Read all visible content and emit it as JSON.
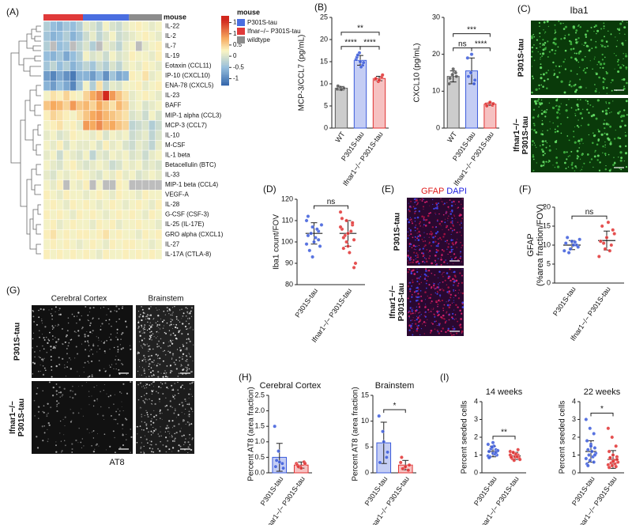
{
  "chart_data": [
    {
      "type": "heatmap",
      "panel": "(A)",
      "title": "mouse",
      "rows": [
        "IL-22",
        "IL-2",
        "IL-7",
        "IL-19",
        "Eotaxin (CCL11)",
        "IP-10 (CXCL10)",
        "ENA-78 (CXCL5)",
        "IL-23",
        "BAFF",
        "MIP-1 alpha (CCL3)",
        "MCP-3 (CCL7)",
        "IL-10",
        "M-CSF",
        "IL-1 beta",
        "Betacellulin (BTC)",
        "IL-33",
        "MIP-1 beta (CCL4)",
        "VEGF-A",
        "IL-28",
        "G-CSF (CSF-3)",
        "IL-25 (IL-17E)",
        "GRO alpha (CXCL1)",
        "IL-27",
        "IL-17A (CTLA-8)"
      ],
      "column_groups": [
        {
          "series": 1,
          "count": 6
        },
        {
          "series": 0,
          "count": 7
        },
        {
          "series": 2,
          "count": 5
        }
      ],
      "legend_title": "mouse",
      "legend": [
        {
          "name": "P301S-tau",
          "color": "#4a6ee0"
        },
        {
          "name": "Ifnar−/− P301S-tau",
          "color": "#e03a3a"
        },
        {
          "name": "wildtype",
          "color": "#8c8c8c"
        }
      ],
      "zlim": [
        -1.3,
        1.8
      ],
      "zticks": [
        1.5,
        1,
        0.5,
        0,
        -0.5,
        -1
      ],
      "values": [
        [
          -0.3,
          -0.5,
          -0.6,
          -0.4,
          -0.5,
          -0.3,
          0.1,
          0,
          -0.2,
          0.2,
          0,
          -0.1,
          0.1,
          0.2,
          0.3,
          0.2,
          0.1,
          0.2
        ],
        [
          -0.4,
          -0.6,
          -0.5,
          -0.3,
          -0.6,
          -0.4,
          -0.1,
          0.1,
          -0.2,
          0,
          0.2,
          -0.1,
          0,
          0.1,
          0.2,
          0.3,
          0.2,
          0.1
        ],
        [
          -0.3,
          null,
          -0.5,
          -0.4,
          null,
          -0.2,
          0,
          -0.3,
          null,
          0.1,
          0,
          -0.2,
          0.1,
          0.2,
          null,
          0.1,
          0.2,
          0.3
        ],
        [
          -0.5,
          -0.6,
          -0.4,
          -0.7,
          -0.5,
          -0.3,
          0.2,
          0,
          0.1,
          -0.1,
          0.2,
          0,
          0.1,
          0.3,
          0.2,
          0.2,
          0.1,
          0.3
        ],
        [
          -0.4,
          -0.2,
          -0.5,
          -0.3,
          -0.6,
          -0.4,
          -0.2,
          -0.4,
          -0.1,
          -0.3,
          0,
          -0.2,
          0.1,
          0.2,
          0.1,
          0.3,
          0.2,
          0.1
        ],
        [
          -0.8,
          -1.0,
          -0.7,
          -0.9,
          -1.1,
          -0.6,
          -0.6,
          -0.8,
          -0.5,
          -0.9,
          -0.4,
          -0.7,
          -0.6,
          0.3,
          0.2,
          0.4,
          0.1,
          0.2
        ],
        [
          -0.6,
          -0.8,
          -0.5,
          -0.7,
          -1.0,
          -0.4,
          0.2,
          -0.3,
          0.4,
          -0.2,
          0.1,
          0,
          0.2,
          0.2,
          0.3,
          0.1,
          0.2,
          0.3
        ],
        [
          0.2,
          0.4,
          0.3,
          0.5,
          0.3,
          0.2,
          0.5,
          0.8,
          1.0,
          1.6,
          0.9,
          0.6,
          0.4,
          0.1,
          0.2,
          0.3,
          0.2,
          0.1
        ],
        [
          0.6,
          0.8,
          0.7,
          0.5,
          0.9,
          0.6,
          0.7,
          0.5,
          0.8,
          0.6,
          0.4,
          0.7,
          0.5,
          0.1,
          0.2,
          0,
          0.1,
          0.2
        ],
        [
          0.3,
          0.5,
          0.4,
          0.3,
          0.2,
          0.4,
          0.6,
          0.8,
          0.9,
          0.7,
          0.6,
          0.5,
          0.4,
          0,
          0.1,
          -0.1,
          0.2,
          0
        ],
        [
          0.2,
          0.3,
          0.4,
          0.2,
          0.3,
          0.1,
          0.9,
          0.8,
          1.0,
          0.7,
          0.8,
          0.6,
          0.5,
          -0.2,
          -0.1,
          0,
          -0.3,
          -0.1
        ],
        [
          0.1,
          0.2,
          0,
          0.1,
          0.3,
          0.2,
          0.2,
          0.1,
          0.3,
          0,
          0.2,
          0.1,
          0.2,
          -0.1,
          0,
          0.1,
          -0.2,
          0
        ],
        [
          0.2,
          0.1,
          0.3,
          0,
          0.2,
          0.1,
          0.1,
          0.2,
          0,
          0.3,
          0.1,
          0.2,
          0,
          -0.1,
          0.1,
          0,
          -0.2,
          0.1
        ],
        [
          0.1,
          0.2,
          -0.1,
          0.2,
          0.1,
          0,
          0.2,
          -0.2,
          0.1,
          0,
          0.2,
          0.1,
          0.2,
          0,
          0.1,
          -0.1,
          0.1,
          0.2
        ],
        [
          0.2,
          0.1,
          0,
          0.2,
          0.3,
          0.1,
          0,
          0.1,
          0.2,
          0.1,
          -0.1,
          0,
          0.2,
          0.1,
          0.2,
          0,
          0.1,
          0
        ],
        [
          0.1,
          0,
          0.2,
          0.1,
          0.2,
          0.3,
          0.2,
          0.1,
          0,
          0.2,
          0.1,
          0.3,
          0.1,
          0.2,
          0,
          0.1,
          0.2,
          0.1
        ],
        [
          0.2,
          0.1,
          0.3,
          null,
          0.2,
          0.1,
          0.3,
          null,
          0.2,
          null,
          null,
          0.3,
          0.2,
          null,
          null,
          null,
          null,
          null
        ],
        [
          0.3,
          0.2,
          0.1,
          0.3,
          0.2,
          0.2,
          0.1,
          0.2,
          0.3,
          0.2,
          0.1,
          0.3,
          0.2,
          0.2,
          0.1,
          0.3,
          0.2,
          0.2
        ],
        [
          0.2,
          0.3,
          0.2,
          0.1,
          0.3,
          0.2,
          0.3,
          0.2,
          0.1,
          0.2,
          0.3,
          0.2,
          0.1,
          0.2,
          0.3,
          0.2,
          0.1,
          0.3
        ],
        [
          0.3,
          0.2,
          0.3,
          0.2,
          0.1,
          0.3,
          0.2,
          0.3,
          0.2,
          0.1,
          0.2,
          0.3,
          0.2,
          0.3,
          0.2,
          0.1,
          0.3,
          0.2
        ],
        [
          0.2,
          0.3,
          0.1,
          0.2,
          0.3,
          0.2,
          0.2,
          0.1,
          0.3,
          0.2,
          0.3,
          0.1,
          0.2,
          0.2,
          0.3,
          0.2,
          0.2,
          0.1
        ],
        [
          0.3,
          0.4,
          0.2,
          0.3,
          0.2,
          0.3,
          0.3,
          0.2,
          0.3,
          0.4,
          0.2,
          0.3,
          0.2,
          0.2,
          0.1,
          0.3,
          0.2,
          0.3
        ],
        [
          0.2,
          0.3,
          0.2,
          0.3,
          0.2,
          0.1,
          0.2,
          0.3,
          0.2,
          0.1,
          0.3,
          0.2,
          0.3,
          0.3,
          0.2,
          0.2,
          0.1,
          0.2
        ],
        [
          0.3,
          0.2,
          0.3,
          0.2,
          0.3,
          0.2,
          0.3,
          0.2,
          0.1,
          0.3,
          0.2,
          0.2,
          0.3,
          0.2,
          0.3,
          0.2,
          0.3,
          0.2
        ]
      ]
    },
    {
      "type": "bar",
      "panel": "(B)",
      "ylabel": "MCP-3/CCL7 (pg/mL)",
      "categories": [
        "WT",
        "P301S-tau",
        "Ifnar1−/− P301S-tau"
      ],
      "colors": [
        "#555555",
        "#3b5bdb",
        "#e03131"
      ],
      "values": [
        9.0,
        15.3,
        11.2
      ],
      "errors": [
        0.4,
        1.1,
        0.5
      ],
      "points": [
        [
          8.8,
          9.2,
          9.0,
          9.5,
          8.7
        ],
        [
          15.5,
          17,
          14.2,
          16,
          15,
          14.8,
          16.5,
          13.8
        ],
        [
          11,
          10.5,
          11.5,
          11.2,
          10.8,
          12
        ]
      ],
      "comparisons": [
        {
          "pair": [
            0,
            2
          ],
          "label": "**"
        },
        {
          "pair": [
            0,
            1
          ],
          "label": "****"
        },
        {
          "pair": [
            1,
            2
          ],
          "label": "****"
        }
      ],
      "ylim": [
        0,
        25
      ],
      "yticks": [
        0,
        5,
        10,
        15,
        20,
        25
      ]
    },
    {
      "type": "bar",
      "ylabel": "CXCL10 (pg/mL)",
      "categories": [
        "WT",
        "P301S-tau",
        "Ifnar1−/− P301S-tau"
      ],
      "colors": [
        "#555555",
        "#3b5bdb",
        "#e03131"
      ],
      "values": [
        14,
        15.5,
        6.5
      ],
      "errors": [
        1.5,
        3.5,
        0.3
      ],
      "points": [
        [
          12,
          14.5,
          15,
          13.5,
          16,
          14
        ],
        [
          19,
          15,
          12,
          14,
          20,
          13
        ],
        [
          6.5,
          6.8,
          6.2,
          6.0,
          7,
          6.6
        ]
      ],
      "comparisons": [
        {
          "pair": [
            0,
            2
          ],
          "label": "***"
        },
        {
          "pair": [
            0,
            1
          ],
          "label": "ns"
        },
        {
          "pair": [
            1,
            2
          ],
          "label": "****"
        }
      ],
      "ylim": [
        0,
        30
      ],
      "yticks": [
        0,
        10,
        20,
        30
      ]
    },
    {
      "type": "dot",
      "panel": "(D)",
      "ylabel": "Iba1 count/FOV",
      "categories": [
        "P301S-tau",
        "Ifnar1−/− P301S-tau"
      ],
      "colors": [
        "#3b5bdb",
        "#e03131"
      ],
      "values": [
        104,
        104
      ],
      "errors": [
        5,
        6
      ],
      "points": [
        [
          110,
          107,
          105,
          103,
          100,
          98,
          96,
          102,
          108,
          104,
          106,
          99,
          93,
          101,
          112
        ],
        [
          114,
          110,
          108,
          106,
          104,
          101,
          97,
          95,
          90,
          103,
          105,
          107,
          100,
          109,
          111,
          98,
          88,
          102
        ]
      ],
      "comparisons": [
        {
          "pair": [
            0,
            1
          ],
          "label": "ns"
        }
      ],
      "ylim": [
        80,
        120
      ],
      "yticks": [
        80,
        90,
        100,
        110,
        120
      ]
    },
    {
      "type": "dot",
      "panel": "(F)",
      "ylabel": [
        "GFAP",
        "(%area fraction/FOV)"
      ],
      "categories": [
        "P301S-tau",
        "Ifnar1−/− P301S-tau"
      ],
      "colors": [
        "#3b5bdb",
        "#e03131"
      ],
      "values": [
        10,
        11.2
      ],
      "errors": [
        1.2,
        2.5
      ],
      "points": [
        [
          8.5,
          9,
          10,
          10.5,
          11,
          9.5,
          12,
          10,
          11.5,
          8,
          10.8
        ],
        [
          7,
          9,
          10,
          11,
          12,
          14,
          15,
          16,
          13,
          10.5,
          8.5
        ]
      ],
      "comparisons": [
        {
          "pair": [
            0,
            1
          ],
          "label": "ns"
        }
      ],
      "ylim": [
        0,
        20
      ],
      "yticks": [
        0,
        5,
        10,
        15,
        20
      ]
    },
    {
      "type": "bar",
      "panel": "(H)",
      "title": "Cerebral Cortex",
      "ylabel": "Percent AT8 (area fraction)",
      "categories": [
        "P301S-tau",
        "Ifnar1−/− P301S-tau"
      ],
      "colors": [
        "#3b5bdb",
        "#e03131"
      ],
      "values": [
        0.5,
        0.25
      ],
      "errors": [
        0.45,
        0.1
      ],
      "points": [
        [
          1.5,
          0.7,
          0.3,
          0.2,
          0.35,
          0.15,
          0.4
        ],
        [
          0.3,
          0.2,
          0.35,
          0.25,
          0.15,
          0.3,
          0.2
        ]
      ],
      "ylim": [
        0,
        2.5
      ],
      "yticks": [
        {
          "value": 0,
          "label": "0.0"
        },
        {
          "value": 0.5,
          "label": "0.5"
        },
        {
          "value": 1,
          "label": "1.0"
        },
        {
          "value": 1.5,
          "label": "1.5"
        },
        {
          "value": 2,
          "label": "2.0"
        },
        {
          "value": 2.5,
          "label": "2.5"
        }
      ]
    },
    {
      "type": "bar",
      "title": "Brainstem",
      "ylabel": "Percent AT8 (area fraction)",
      "categories": [
        "P301S-tau",
        "Ifnar1−/− P301S-tau"
      ],
      "colors": [
        "#3b5bdb",
        "#e03131"
      ],
      "values": [
        5.8,
        1.5
      ],
      "errors": [
        4,
        0.9
      ],
      "points": [
        [
          11,
          8,
          3,
          2,
          6,
          4
        ],
        [
          2,
          1,
          0.5,
          3,
          1.2,
          1.5,
          0.8
        ]
      ],
      "comparisons": [
        {
          "pair": [
            0,
            1
          ],
          "label": "*"
        }
      ],
      "ylim": [
        0,
        15
      ],
      "yticks": [
        0,
        5,
        10,
        15
      ]
    },
    {
      "type": "dot",
      "panel": "(I)",
      "title": "14 weeks",
      "ylabel": "Percent seeded cells",
      "categories": [
        "P301S-tau",
        "Ifnar1−/− P301S-tau"
      ],
      "colors": [
        "#3b5bdb",
        "#e03131"
      ],
      "values": [
        1.2,
        0.95
      ],
      "errors": [
        0.3,
        0.2
      ],
      "points": [
        [
          1.6,
          1.4,
          1.3,
          1.2,
          1.1,
          1.0,
          0.9,
          1.5,
          1.25,
          1.35,
          1.05,
          0.95,
          1.45,
          1.15,
          0.85,
          1.7
        ],
        [
          1.2,
          1.1,
          1.0,
          0.95,
          0.9,
          0.85,
          0.8,
          1.05,
          0.75,
          1.15,
          0.9,
          1.0,
          0.7,
          1.3,
          0.88
        ]
      ],
      "comparisons": [
        {
          "pair": [
            0,
            1
          ],
          "label": "**"
        }
      ],
      "ylim": [
        0,
        4
      ],
      "yticks": [
        0,
        1,
        2,
        3,
        4
      ]
    },
    {
      "type": "dot",
      "title": "22 weeks",
      "ylabel": "Percent seeded cells",
      "categories": [
        "P301S-tau",
        "Ifnar1−/− P301S-tau"
      ],
      "colors": [
        "#3b5bdb",
        "#e03131"
      ],
      "values": [
        1.2,
        0.75
      ],
      "errors": [
        0.6,
        0.5
      ],
      "points": [
        [
          3,
          2.5,
          2.2,
          1.8,
          1.6,
          1.4,
          1.3,
          1.2,
          1.1,
          1.0,
          0.9,
          0.8,
          0.7,
          0.6,
          0.5,
          1.5,
          1.0,
          0.4
        ],
        [
          2.5,
          2.0,
          1.5,
          1.2,
          1.0,
          0.9,
          0.8,
          0.7,
          0.6,
          0.55,
          0.5,
          0.45,
          0.4,
          0.35,
          0.3,
          0.65,
          0.75,
          0.85
        ]
      ],
      "comparisons": [
        {
          "pair": [
            0,
            1
          ],
          "label": "*"
        }
      ],
      "ylim": [
        0,
        4
      ],
      "yticks": [
        0,
        1,
        2,
        3,
        4
      ]
    }
  ],
  "panel_C": {
    "label": "(C)",
    "title": "Iba1",
    "rows": [
      [
        "P301S-tau"
      ],
      [
        "Ifnar1−/−",
        "P301S-tau"
      ]
    ]
  },
  "panel_E": {
    "label": "(E)",
    "title": [
      "GFAP",
      "DAPI"
    ],
    "rows": [
      [
        "P301S-tau"
      ],
      [
        "Ifnar1−/−",
        "P301S-tau"
      ]
    ]
  },
  "panel_G": {
    "label": "(G)",
    "columns": [
      "Cerebral Cortex",
      "Brainstem"
    ],
    "rows": [
      [
        "P301S-tau"
      ],
      [
        "Ifnar1−/−",
        "P301S-tau"
      ]
    ],
    "caption": "AT8"
  }
}
